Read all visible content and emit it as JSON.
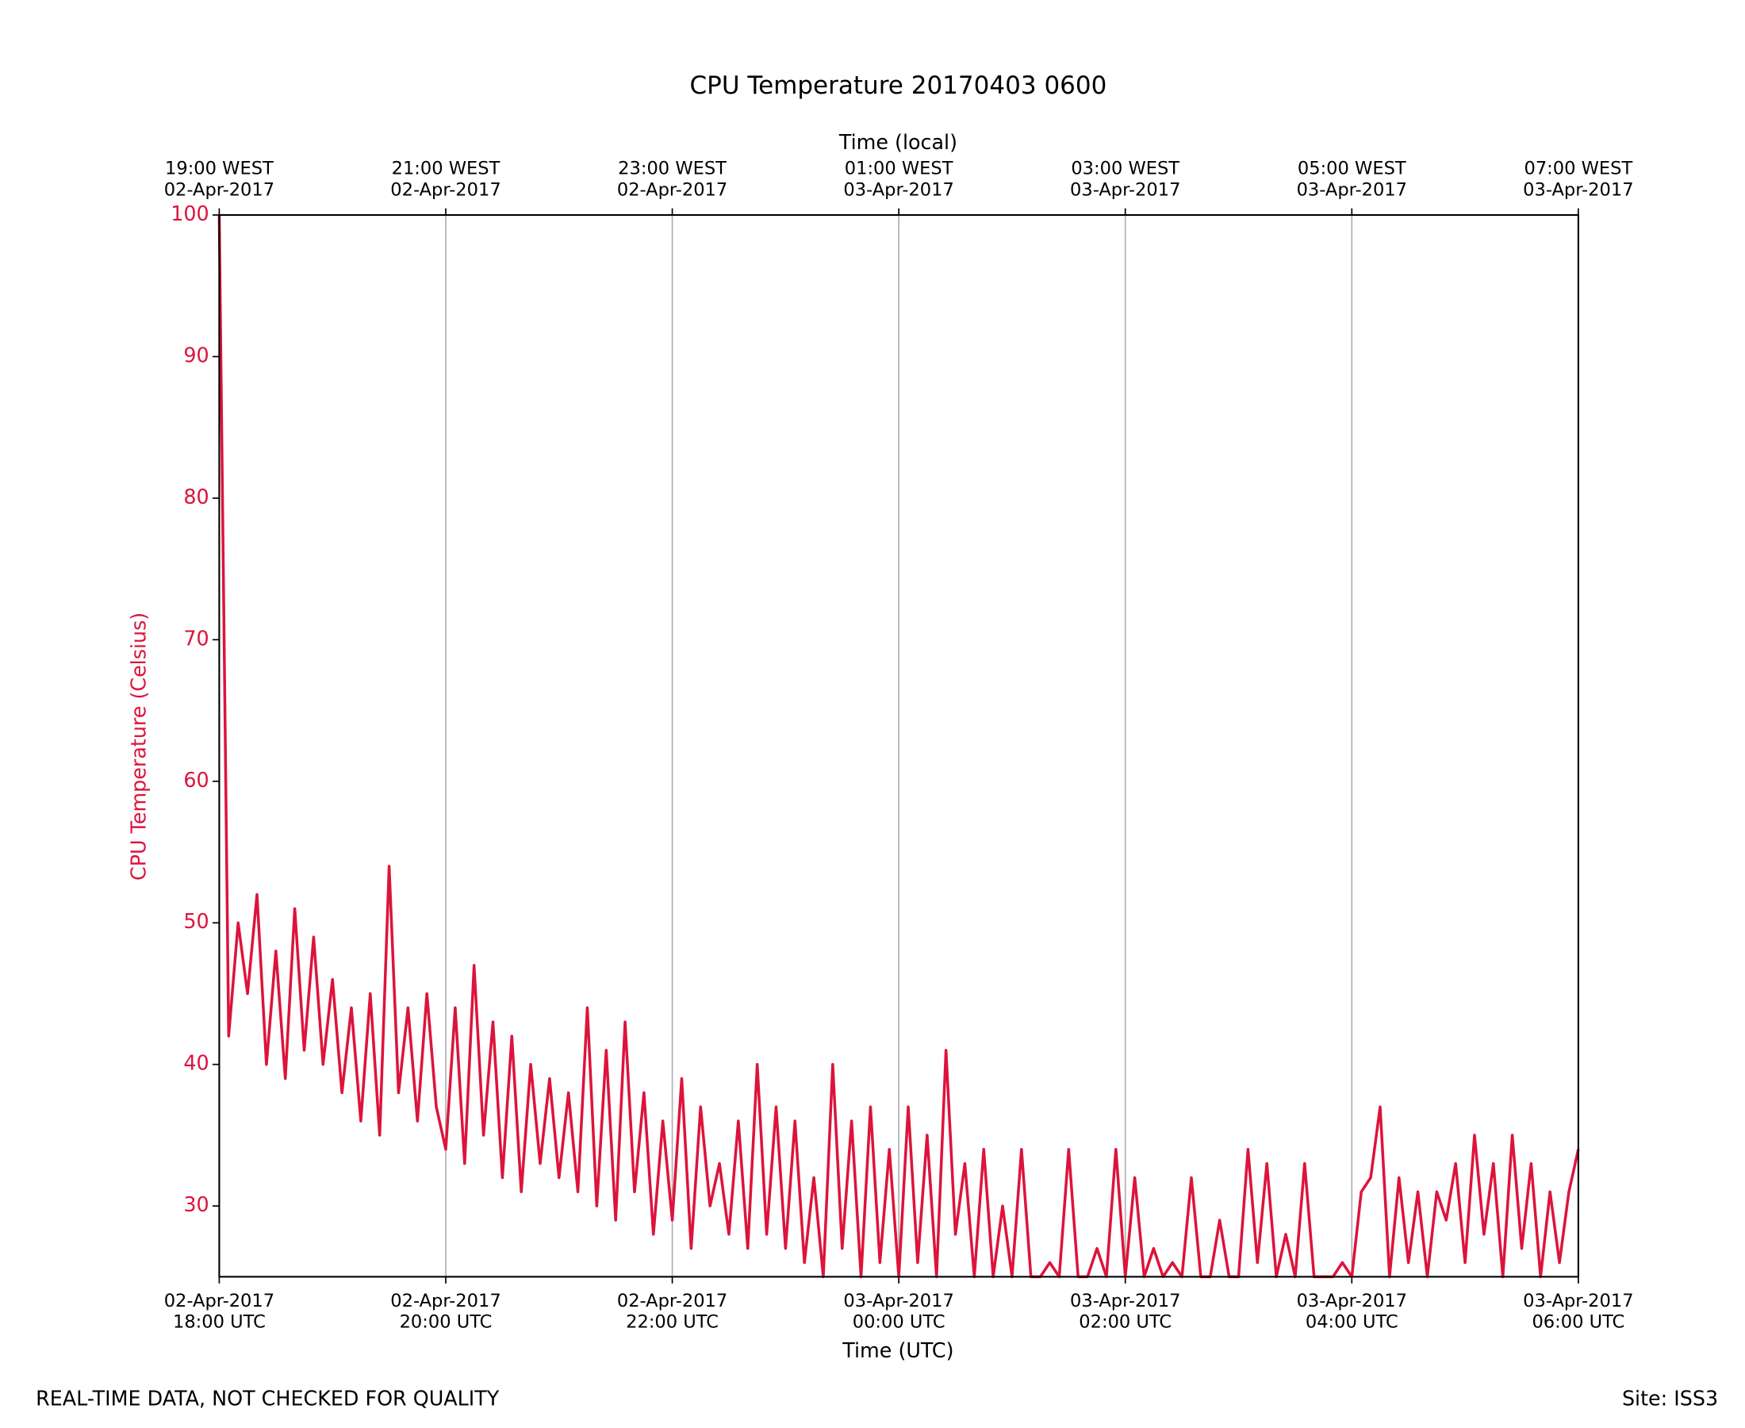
{
  "chart_data": {
    "type": "line",
    "title": "CPU Temperature 20170403 0600",
    "x_label": "Time (UTC)",
    "x2_label": "Time (local)",
    "y_label": "CPU Temperature (Celsius)",
    "footer_left": "REAL-TIME DATA, NOT CHECKED FOR QUALITY",
    "footer_right": "Site: ISS3",
    "color": "#dc143c",
    "grid": true,
    "xlim": [
      "2017-04-02T18:00",
      "2017-04-03T06:00"
    ],
    "ylim": [
      25,
      100
    ],
    "yticks": [
      30,
      40,
      50,
      60,
      70,
      80,
      90,
      100
    ],
    "xticks": [
      {
        "value": "2017-04-02T18:00",
        "label": [
          "02-Apr-2017",
          "18:00 UTC"
        ]
      },
      {
        "value": "2017-04-02T20:00",
        "label": [
          "02-Apr-2017",
          "20:00 UTC"
        ]
      },
      {
        "value": "2017-04-02T22:00",
        "label": [
          "02-Apr-2017",
          "22:00 UTC"
        ]
      },
      {
        "value": "2017-04-03T00:00",
        "label": [
          "03-Apr-2017",
          "00:00 UTC"
        ]
      },
      {
        "value": "2017-04-03T02:00",
        "label": [
          "03-Apr-2017",
          "02:00 UTC"
        ]
      },
      {
        "value": "2017-04-03T04:00",
        "label": [
          "03-Apr-2017",
          "04:00 UTC"
        ]
      },
      {
        "value": "2017-04-03T06:00",
        "label": [
          "03-Apr-2017",
          "06:00 UTC"
        ]
      }
    ],
    "x2ticks": [
      {
        "value": "2017-04-02T18:00",
        "label": [
          "19:00 WEST",
          "02-Apr-2017"
        ]
      },
      {
        "value": "2017-04-02T20:00",
        "label": [
          "21:00 WEST",
          "02-Apr-2017"
        ]
      },
      {
        "value": "2017-04-02T22:00",
        "label": [
          "23:00 WEST",
          "02-Apr-2017"
        ]
      },
      {
        "value": "2017-04-03T00:00",
        "label": [
          "01:00 WEST",
          "03-Apr-2017"
        ]
      },
      {
        "value": "2017-04-03T02:00",
        "label": [
          "03:00 WEST",
          "03-Apr-2017"
        ]
      },
      {
        "value": "2017-04-03T04:00",
        "label": [
          "05:00 WEST",
          "03-Apr-2017"
        ]
      },
      {
        "value": "2017-04-03T06:00",
        "label": [
          "07:00 WEST",
          "03-Apr-2017"
        ]
      }
    ],
    "x": [
      "2017-04-02T18:00",
      "2017-04-02T18:05",
      "2017-04-02T18:10",
      "2017-04-02T18:15",
      "2017-04-02T18:20",
      "2017-04-02T18:25",
      "2017-04-02T18:30",
      "2017-04-02T18:35",
      "2017-04-02T18:40",
      "2017-04-02T18:45",
      "2017-04-02T18:50",
      "2017-04-02T18:55",
      "2017-04-02T19:00",
      "2017-04-02T19:05",
      "2017-04-02T19:10",
      "2017-04-02T19:15",
      "2017-04-02T19:20",
      "2017-04-02T19:25",
      "2017-04-02T19:30",
      "2017-04-02T19:35",
      "2017-04-02T19:40",
      "2017-04-02T19:45",
      "2017-04-02T19:50",
      "2017-04-02T19:55",
      "2017-04-02T20:00",
      "2017-04-02T20:05",
      "2017-04-02T20:10",
      "2017-04-02T20:15",
      "2017-04-02T20:20",
      "2017-04-02T20:25",
      "2017-04-02T20:30",
      "2017-04-02T20:35",
      "2017-04-02T20:40",
      "2017-04-02T20:45",
      "2017-04-02T20:50",
      "2017-04-02T20:55",
      "2017-04-02T21:00",
      "2017-04-02T21:05",
      "2017-04-02T21:10",
      "2017-04-02T21:15",
      "2017-04-02T21:20",
      "2017-04-02T21:25",
      "2017-04-02T21:30",
      "2017-04-02T21:35",
      "2017-04-02T21:40",
      "2017-04-02T21:45",
      "2017-04-02T21:50",
      "2017-04-02T21:55",
      "2017-04-02T22:00",
      "2017-04-02T22:05",
      "2017-04-02T22:10",
      "2017-04-02T22:15",
      "2017-04-02T22:20",
      "2017-04-02T22:25",
      "2017-04-02T22:30",
      "2017-04-02T22:35",
      "2017-04-02T22:40",
      "2017-04-02T22:45",
      "2017-04-02T22:50",
      "2017-04-02T22:55",
      "2017-04-02T23:00",
      "2017-04-02T23:05",
      "2017-04-02T23:10",
      "2017-04-02T23:15",
      "2017-04-02T23:20",
      "2017-04-02T23:25",
      "2017-04-02T23:30",
      "2017-04-02T23:35",
      "2017-04-02T23:40",
      "2017-04-02T23:45",
      "2017-04-02T23:50",
      "2017-04-02T23:55",
      "2017-04-03T00:00",
      "2017-04-03T00:05",
      "2017-04-03T00:10",
      "2017-04-03T00:15",
      "2017-04-03T00:20",
      "2017-04-03T00:25",
      "2017-04-03T00:30",
      "2017-04-03T00:35",
      "2017-04-03T00:40",
      "2017-04-03T00:45",
      "2017-04-03T00:50",
      "2017-04-03T00:55",
      "2017-04-03T01:00",
      "2017-04-03T01:05",
      "2017-04-03T01:10",
      "2017-04-03T01:15",
      "2017-04-03T01:20",
      "2017-04-03T01:25",
      "2017-04-03T01:30",
      "2017-04-03T01:35",
      "2017-04-03T01:40",
      "2017-04-03T01:45",
      "2017-04-03T01:50",
      "2017-04-03T01:55",
      "2017-04-03T02:00",
      "2017-04-03T02:05",
      "2017-04-03T02:10",
      "2017-04-03T02:15",
      "2017-04-03T02:20",
      "2017-04-03T02:25",
      "2017-04-03T02:30",
      "2017-04-03T02:35",
      "2017-04-03T02:40",
      "2017-04-03T02:45",
      "2017-04-03T02:50",
      "2017-04-03T02:55",
      "2017-04-03T03:00",
      "2017-04-03T03:05",
      "2017-04-03T03:10",
      "2017-04-03T03:15",
      "2017-04-03T03:20",
      "2017-04-03T03:25",
      "2017-04-03T03:30",
      "2017-04-03T03:35",
      "2017-04-03T03:40",
      "2017-04-03T03:45",
      "2017-04-03T03:50",
      "2017-04-03T03:55",
      "2017-04-03T04:00",
      "2017-04-03T04:05",
      "2017-04-03T04:10",
      "2017-04-03T04:15",
      "2017-04-03T04:20",
      "2017-04-03T04:25",
      "2017-04-03T04:30",
      "2017-04-03T04:35",
      "2017-04-03T04:40",
      "2017-04-03T04:45",
      "2017-04-03T04:50",
      "2017-04-03T04:55",
      "2017-04-03T05:00",
      "2017-04-03T05:05",
      "2017-04-03T05:10",
      "2017-04-03T05:15",
      "2017-04-03T05:20",
      "2017-04-03T05:25",
      "2017-04-03T05:30",
      "2017-04-03T05:35",
      "2017-04-03T05:40",
      "2017-04-03T05:45",
      "2017-04-03T05:50",
      "2017-04-03T05:55",
      "2017-04-03T06:00"
    ],
    "values": [
      100,
      42,
      50,
      45,
      52,
      40,
      48,
      39,
      51,
      41,
      49,
      40,
      46,
      38,
      44,
      36,
      45,
      35,
      54,
      38,
      44,
      36,
      45,
      37,
      34,
      44,
      33,
      47,
      35,
      43,
      32,
      42,
      31,
      40,
      33,
      39,
      32,
      38,
      31,
      44,
      30,
      41,
      29,
      43,
      31,
      38,
      28,
      36,
      29,
      39,
      27,
      37,
      30,
      33,
      28,
      36,
      27,
      40,
      28,
      37,
      27,
      36,
      26,
      32,
      25,
      40,
      27,
      36,
      25,
      37,
      26,
      34,
      25,
      37,
      26,
      35,
      25,
      41,
      28,
      33,
      25,
      34,
      25,
      30,
      25,
      34,
      25,
      25,
      26,
      25,
      34,
      25,
      25,
      27,
      25,
      34,
      25,
      32,
      25,
      27,
      25,
      26,
      25,
      32,
      25,
      25,
      29,
      25,
      25,
      34,
      26,
      33,
      25,
      28,
      25,
      33,
      25,
      25,
      25,
      26,
      25,
      31,
      32,
      37,
      25,
      32,
      26,
      31,
      25,
      31,
      29,
      33,
      26,
      35,
      28,
      33,
      25,
      35,
      27,
      33,
      25,
      31,
      26,
      31,
      34
    ]
  }
}
